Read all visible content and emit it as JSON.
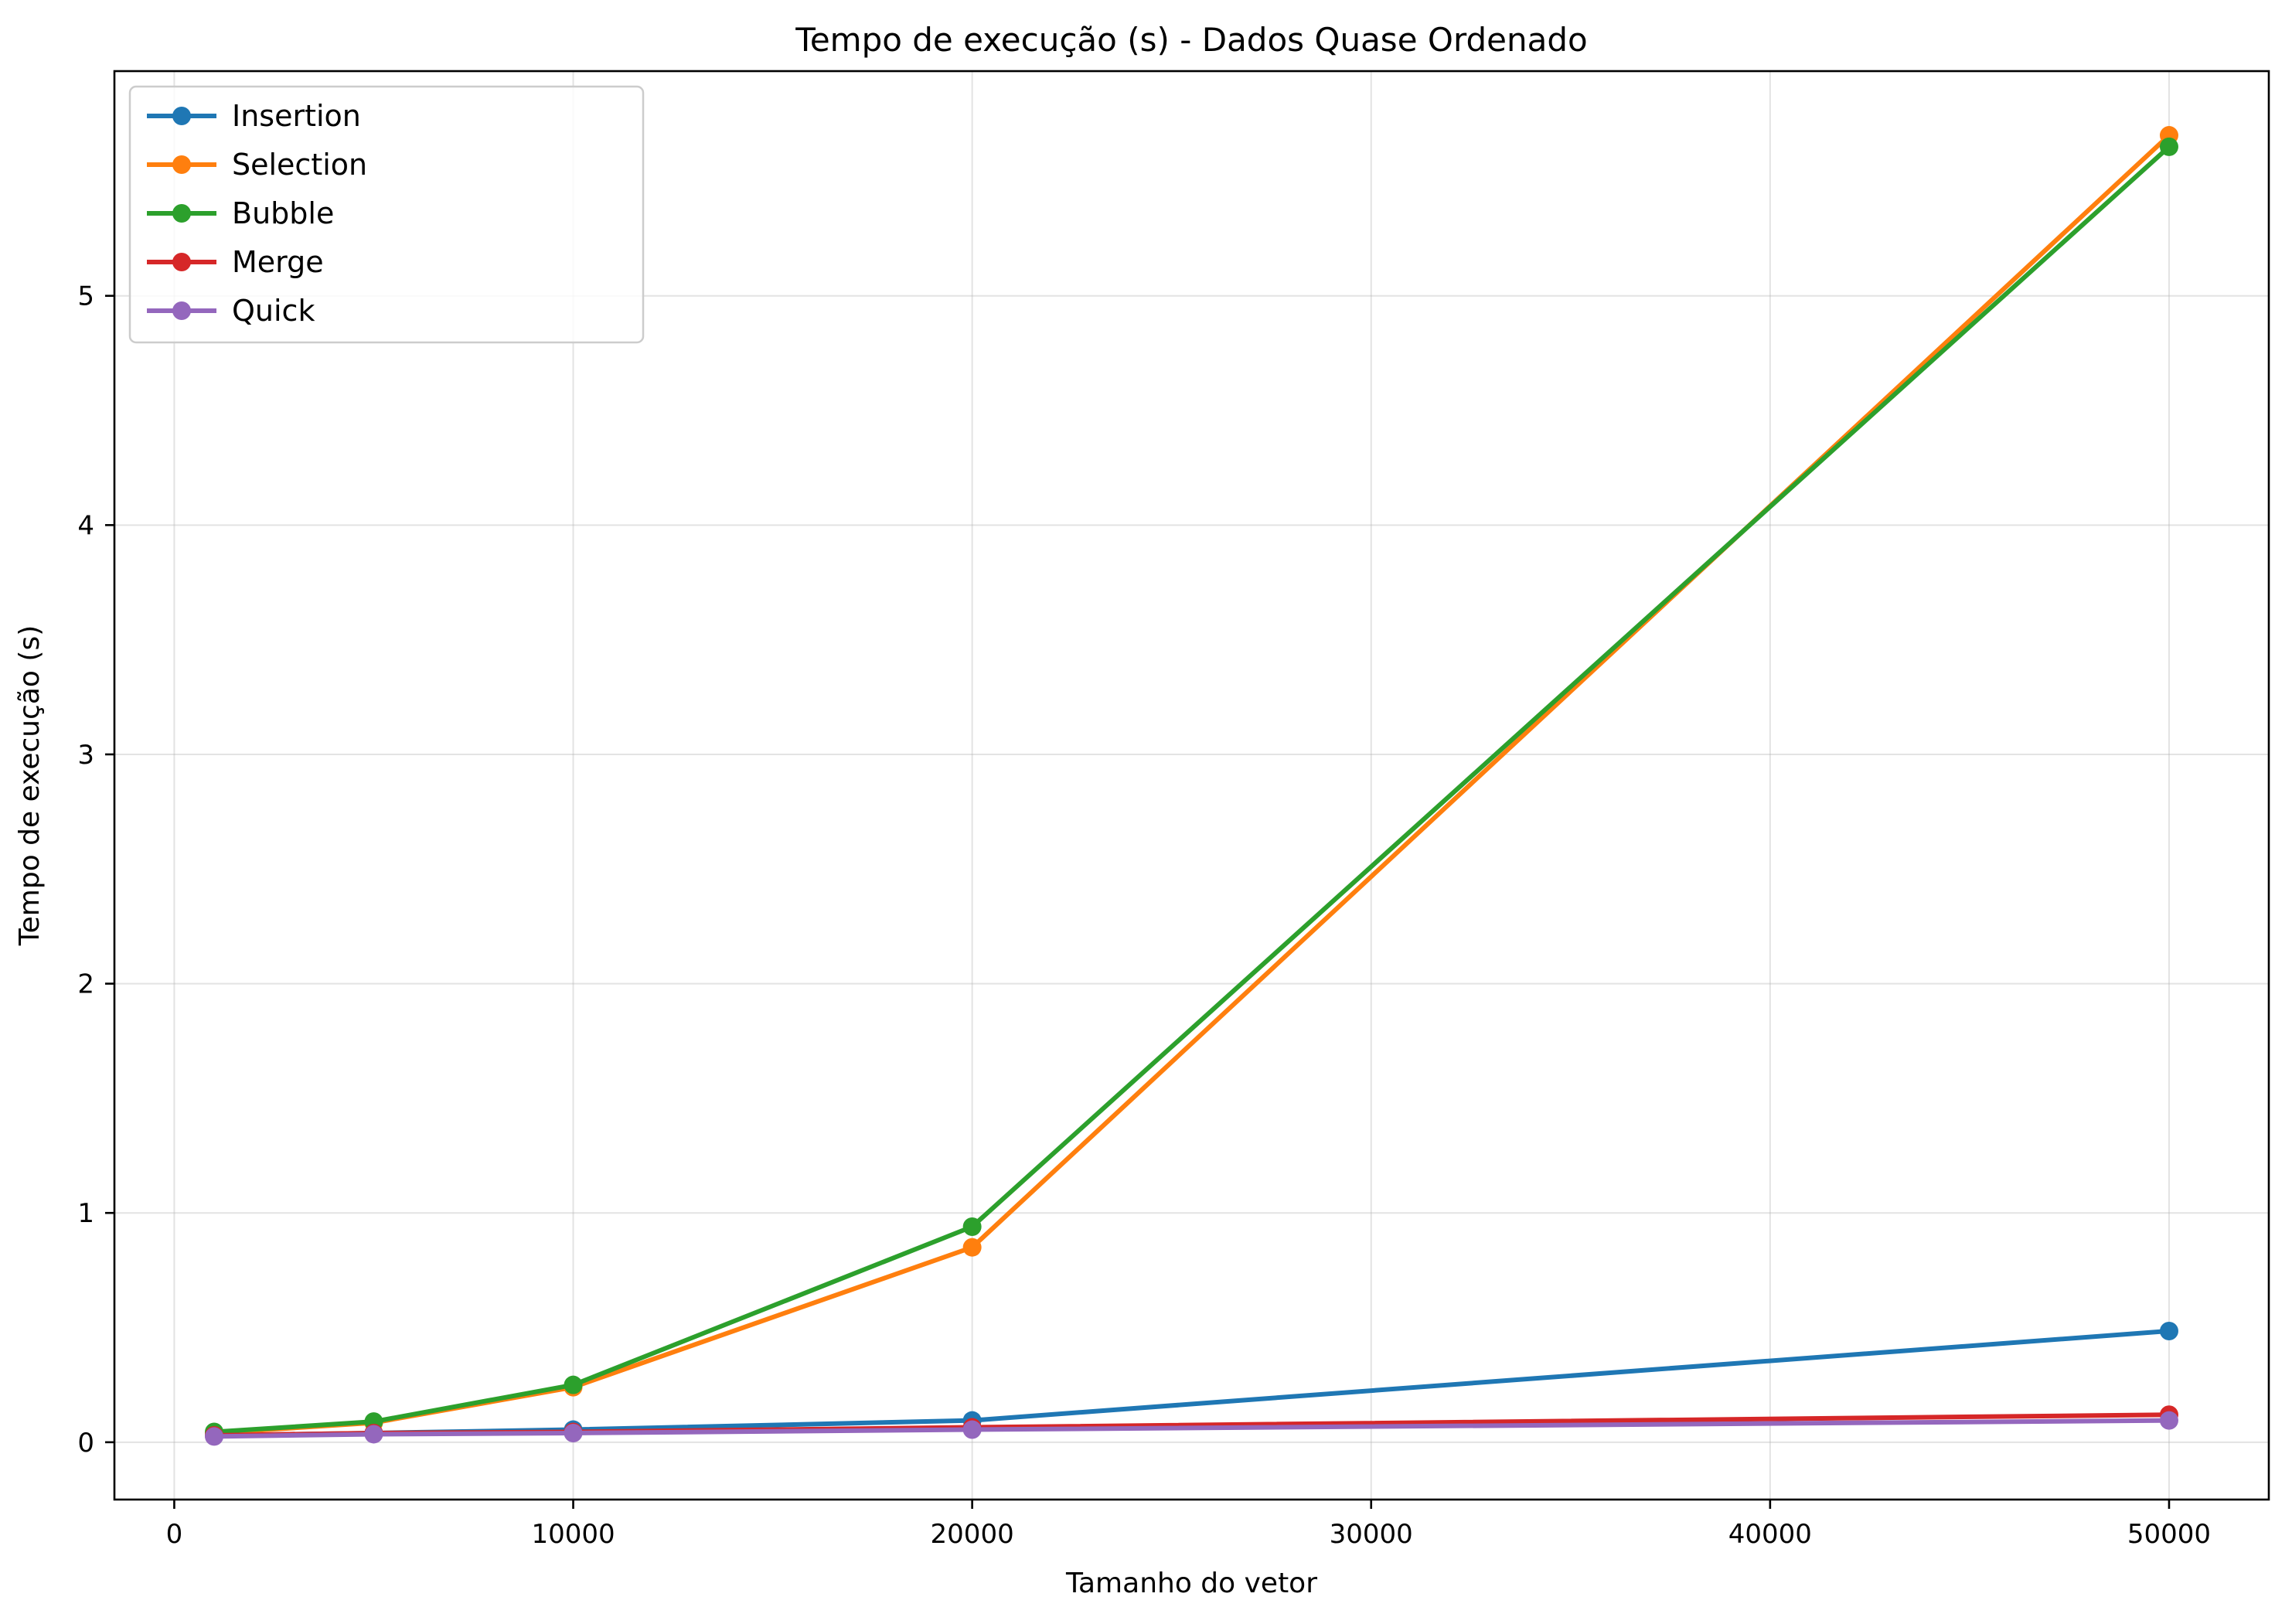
{
  "chart_data": {
    "type": "line",
    "title": "Tempo de execução (s) - Dados Quase Ordenado",
    "xlabel": "Tamanho do vetor",
    "ylabel": "Tempo de execução (s)",
    "x": [
      1000,
      5000,
      10000,
      20000,
      50000
    ],
    "xlim": [
      -1500,
      52500
    ],
    "ylim": [
      -0.25,
      5.98
    ],
    "xticks": [
      0,
      10000,
      20000,
      30000,
      40000,
      50000
    ],
    "yticks": [
      0,
      1,
      2,
      3,
      4,
      5
    ],
    "grid": true,
    "legend_position": "top-left",
    "marker": "circle",
    "series": [
      {
        "name": "Insertion",
        "color": "#1f77b4",
        "values": [
          0.03,
          0.04,
          0.055,
          0.095,
          0.485
        ]
      },
      {
        "name": "Selection",
        "color": "#ff7f0e",
        "values": [
          0.04,
          0.085,
          0.24,
          0.85,
          5.7
        ]
      },
      {
        "name": "Bubble",
        "color": "#2ca02c",
        "values": [
          0.045,
          0.09,
          0.25,
          0.94,
          5.65
        ]
      },
      {
        "name": "Merge",
        "color": "#d62728",
        "values": [
          0.03,
          0.04,
          0.045,
          0.065,
          0.12
        ]
      },
      {
        "name": "Quick",
        "color": "#9467bd",
        "values": [
          0.025,
          0.035,
          0.04,
          0.055,
          0.095
        ]
      }
    ]
  }
}
